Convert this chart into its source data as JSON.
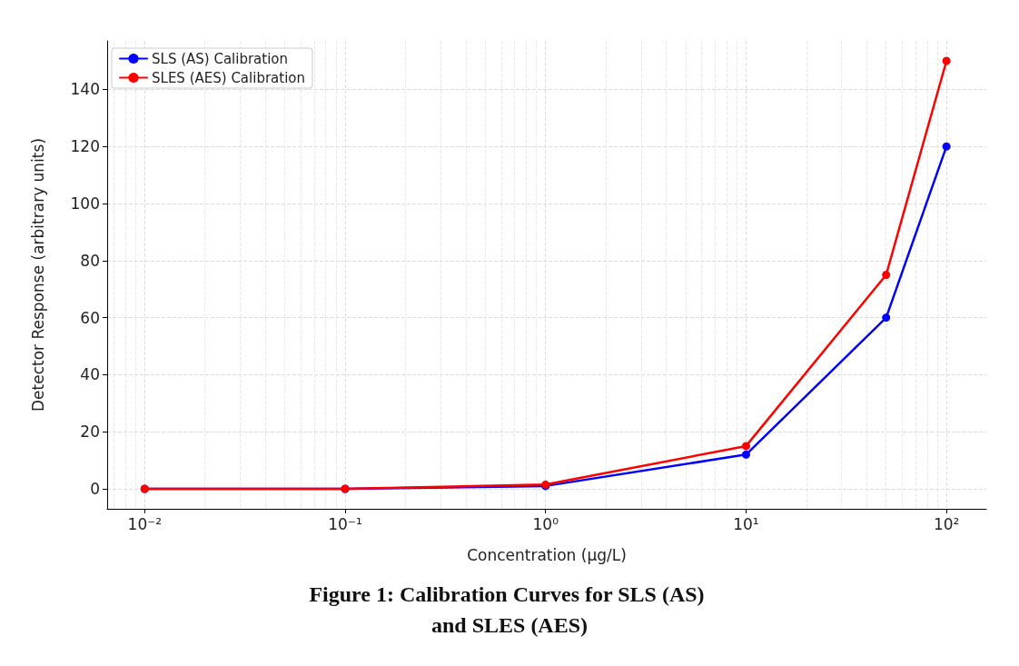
{
  "chart_data": {
    "type": "line",
    "title": "Figure 1: Calibration Curves for SLS (AS) and SLES (AES)",
    "xlabel": "Concentration (µg/L)",
    "ylabel": "Detector Response (arbitrary units)",
    "x": [
      0.01,
      0.1,
      1,
      10,
      50,
      100
    ],
    "series": [
      {
        "name": "SLS (AS) Calibration",
        "color": "#0000ff",
        "values": [
          0,
          0,
          1,
          12,
          60,
          120
        ]
      },
      {
        "name": "SLES (AES) Calibration",
        "color": "#ff0000",
        "values": [
          0,
          0,
          1.5,
          15,
          75,
          150
        ]
      }
    ],
    "log": "x",
    "xlim": [
      0.0065,
      158
    ],
    "xticks": [
      {
        "value": 0.01,
        "label": "10⁻²"
      },
      {
        "value": 0.1,
        "label": "10⁻¹"
      },
      {
        "value": 1,
        "label": "10⁰"
      },
      {
        "value": 10,
        "label": "10¹"
      },
      {
        "value": 100,
        "label": "10²"
      }
    ],
    "ylim": [
      -7,
      157
    ],
    "yticks": [
      0,
      20,
      40,
      60,
      80,
      100,
      120,
      140
    ],
    "grid": true,
    "legend": "top left",
    "marker": "circle",
    "line_style": "solid"
  }
}
